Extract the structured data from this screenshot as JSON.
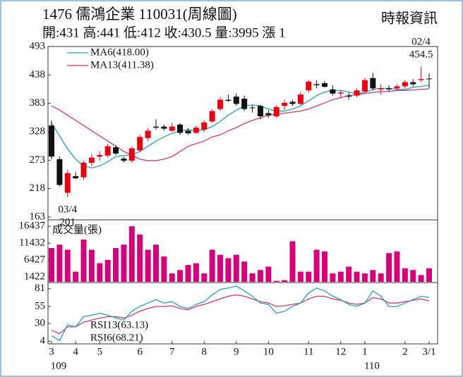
{
  "header": {
    "title": "1476 儒鴻企業 110031(周線圖)",
    "subtitle": "開:431 高:441 低:412 收:430.5 量:3995 漲 1",
    "source": "時報資訊"
  },
  "chart_data": [
    {
      "type": "candlestick",
      "up_color": "#e60012",
      "down_color": "#111111",
      "open": [
        340,
        275,
        210,
        242,
        240,
        268,
        280,
        282,
        298,
        276,
        272,
        292,
        316,
        338,
        338,
        330,
        342,
        330,
        326,
        332,
        348,
        372,
        390,
        396,
        392,
        375,
        378,
        364,
        358,
        378,
        386,
        382,
        408,
        420,
        422,
        410,
        402,
        398,
        398,
        406,
        432,
        410,
        412,
        412,
        416,
        424,
        428,
        431
      ],
      "high": [
        350,
        280,
        255,
        250,
        272,
        285,
        290,
        305,
        302,
        280,
        300,
        322,
        335,
        352,
        342,
        345,
        345,
        335,
        340,
        350,
        372,
        395,
        400,
        402,
        398,
        380,
        380,
        370,
        380,
        390,
        390,
        405,
        428,
        428,
        426,
        418,
        408,
        404,
        412,
        432,
        442,
        420,
        418,
        420,
        428,
        430,
        454.5,
        441
      ],
      "low": [
        275,
        222,
        201,
        236,
        235,
        262,
        272,
        278,
        283,
        268,
        268,
        288,
        310,
        332,
        330,
        328,
        322,
        322,
        324,
        328,
        345,
        368,
        386,
        378,
        368,
        365,
        352,
        355,
        355,
        370,
        378,
        380,
        404,
        412,
        414,
        398,
        394,
        390,
        395,
        404,
        408,
        400,
        406,
        408,
        412,
        416,
        424,
        412
      ],
      "close": [
        280,
        225,
        248,
        238,
        268,
        278,
        283,
        300,
        286,
        272,
        296,
        318,
        330,
        336,
        334,
        338,
        326,
        325,
        336,
        346,
        368,
        390,
        388,
        382,
        372,
        374,
        358,
        360,
        376,
        384,
        382,
        400,
        425,
        418,
        415,
        402,
        404,
        396,
        408,
        428,
        412,
        412,
        410,
        416,
        424,
        420,
        430,
        430.5
      ],
      "series": [
        {
          "name": "MA6(418.00)",
          "color": "#2a9fb5",
          "values": [
            345,
            320,
            295,
            275,
            262,
            258,
            262,
            270,
            280,
            282,
            283,
            290,
            300,
            310,
            318,
            325,
            330,
            332,
            330,
            332,
            338,
            348,
            360,
            370,
            378,
            380,
            378,
            372,
            368,
            368,
            372,
            378,
            388,
            398,
            405,
            408,
            408,
            405,
            402,
            404,
            410,
            412,
            412,
            410,
            410,
            414,
            416,
            418
          ]
        },
        {
          "name": "MA13(411.38)",
          "color": "#d2386c",
          "values": [
            378,
            370,
            360,
            350,
            340,
            330,
            320,
            310,
            300,
            290,
            282,
            275,
            272,
            272,
            275,
            280,
            290,
            300,
            305,
            310,
            318,
            322,
            330,
            336,
            344,
            350,
            355,
            360,
            362,
            364,
            366,
            368,
            372,
            378,
            384,
            390,
            394,
            398,
            400,
            402,
            404,
            406,
            406,
            408,
            408,
            409,
            410,
            411.38
          ]
        }
      ],
      "high_note": {
        "date": "02/4",
        "value": 454.5
      },
      "low_note": {
        "date": "03/4",
        "value": 201
      },
      "ylim": [
        163,
        493
      ],
      "yticks": [
        163,
        218,
        273,
        328,
        383,
        438,
        493
      ]
    },
    {
      "type": "bar",
      "label": "成交量(張)",
      "color": "#d6007a",
      "values": [
        10000,
        11000,
        9500,
        3000,
        12500,
        9500,
        5500,
        6500,
        10000,
        11000,
        16437,
        14000,
        9500,
        11000,
        7500,
        2500,
        3500,
        5000,
        5500,
        2500,
        9500,
        8000,
        7000,
        8000,
        6000,
        2500,
        3500,
        4500,
        300,
        500,
        12000,
        3000,
        3000,
        9500,
        9000,
        2500,
        3000,
        4500,
        3000,
        2500,
        3500,
        2500,
        8500,
        9000,
        4000,
        3500,
        2000,
        3995
      ],
      "ylim": [
        0,
        17500
      ],
      "yticks": [
        1422,
        6427,
        11432,
        16437
      ]
    },
    {
      "type": "line",
      "series": [
        {
          "name": "RSI13(63.13)",
          "color": "#d2386c",
          "values": [
            20,
            15,
            25,
            25,
            32,
            35,
            38,
            40,
            40,
            38,
            42,
            48,
            52,
            55,
            55,
            56,
            52,
            50,
            55,
            58,
            62,
            66,
            70,
            72,
            70,
            66,
            62,
            60,
            55,
            56,
            58,
            60,
            66,
            70,
            70,
            66,
            64,
            60,
            58,
            60,
            68,
            66,
            60,
            60,
            62,
            64,
            66,
            63.13
          ]
        },
        {
          "name": "RSI6(68.21)",
          "color": "#2a9fb5",
          "values": [
            12,
            5,
            28,
            25,
            40,
            42,
            45,
            42,
            38,
            35,
            48,
            55,
            60,
            65,
            60,
            62,
            55,
            52,
            58,
            62,
            72,
            80,
            82,
            85,
            78,
            70,
            60,
            58,
            45,
            48,
            55,
            60,
            75,
            82,
            78,
            70,
            65,
            58,
            55,
            60,
            78,
            70,
            55,
            55,
            60,
            65,
            70,
            68.21
          ]
        }
      ],
      "categories": [
        "3",
        null,
        null,
        "4",
        null,
        null,
        "5",
        null,
        null,
        null,
        null,
        "6",
        null,
        null,
        null,
        "7",
        null,
        null,
        null,
        "8",
        null,
        null,
        null,
        "9",
        null,
        null,
        null,
        "10",
        null,
        null,
        null,
        null,
        "11",
        null,
        null,
        null,
        "12",
        null,
        null,
        "1",
        null,
        null,
        null,
        null,
        "2",
        null,
        null,
        "3/1"
      ],
      "years": [
        "109",
        null,
        null,
        null,
        null,
        null,
        null,
        null,
        null,
        null,
        null,
        null,
        null,
        null,
        null,
        null,
        null,
        null,
        null,
        null,
        null,
        null,
        null,
        null,
        null,
        null,
        null,
        null,
        null,
        null,
        null,
        null,
        null,
        null,
        null,
        null,
        null,
        null,
        null,
        "110",
        null,
        null,
        null,
        null,
        null,
        null,
        null,
        null
      ],
      "ylim": [
        0,
        88
      ],
      "yticks": [
        4,
        30,
        55,
        81
      ]
    }
  ]
}
